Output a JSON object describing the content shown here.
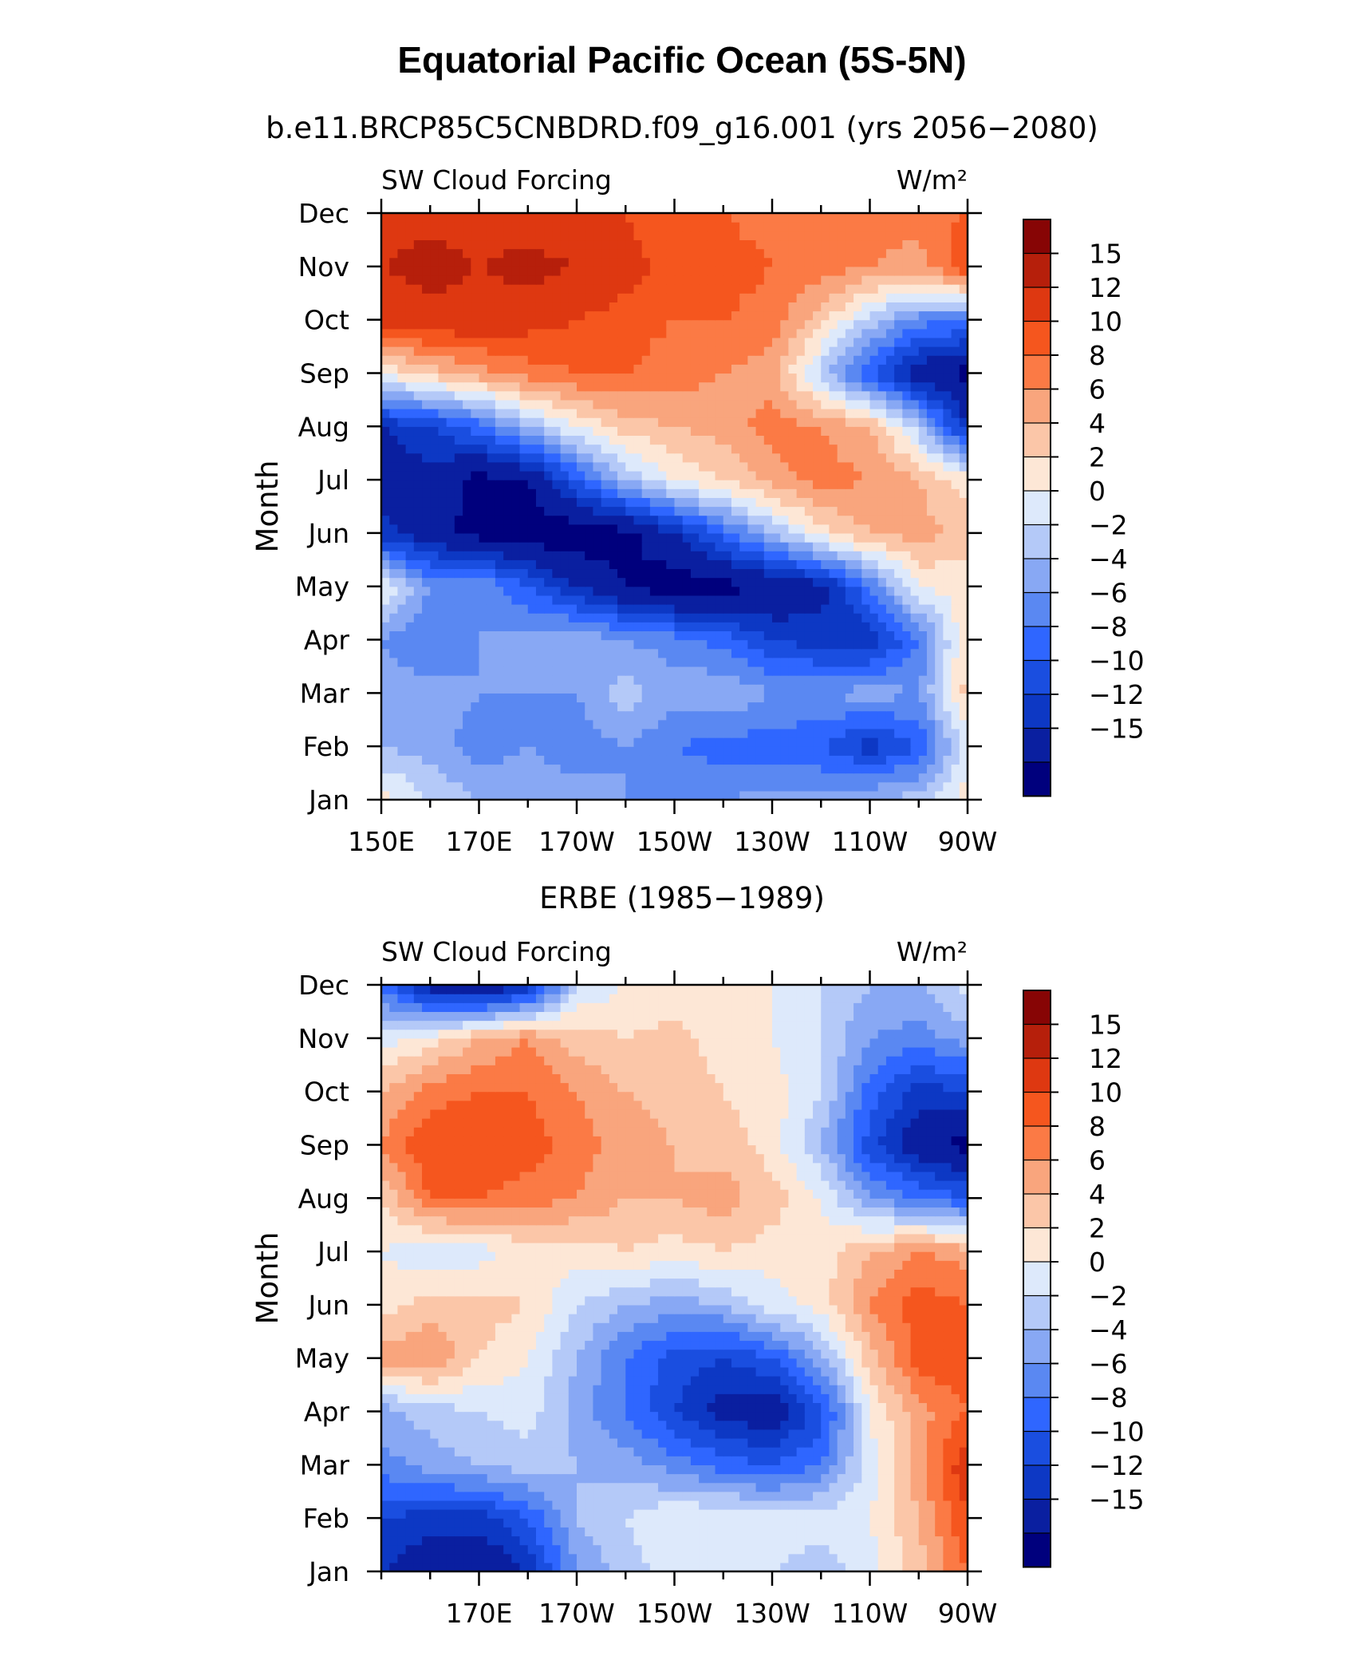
{
  "title": "Equatorial Pacific Ocean (5S-5N)",
  "chart_data": [
    {
      "type": "heatmap",
      "title": "b.e11.BRCP85C5CNBDRD.f09_g16.001 (yrs 2056−2080)",
      "left_label": "SW Cloud Forcing",
      "right_label": "W/m²",
      "ylabel": "Month",
      "xlabel": "",
      "yticks": [
        "Jan",
        "Feb",
        "Mar",
        "Apr",
        "May",
        "Jun",
        "Jul",
        "Aug",
        "Sep",
        "Oct",
        "Nov",
        "Dec"
      ],
      "xtick_labels": [
        "150E",
        "170E",
        "170W",
        "150W",
        "130W",
        "110W",
        "90W"
      ],
      "x_longitudes": [
        150,
        160,
        170,
        180,
        190,
        200,
        210,
        220,
        230,
        240,
        250,
        260,
        270
      ],
      "values": [
        [
          3,
          0,
          -2,
          -3,
          -3,
          -4,
          -4,
          -4,
          -3,
          -3,
          -2,
          -1,
          3
        ],
        [
          -2,
          -3,
          -5,
          -4,
          -5,
          -4,
          -6,
          -7,
          -7,
          -8,
          -11,
          -8,
          1
        ],
        [
          -3,
          -3,
          -4,
          -4,
          -4,
          -1,
          -3,
          -2,
          -4,
          -4,
          -3,
          -4,
          5
        ],
        [
          -4,
          -6,
          -4,
          -3,
          -2,
          -4,
          -5,
          -7,
          -10,
          -11,
          -12,
          -6,
          4
        ],
        [
          2,
          -4,
          -4,
          -8,
          -12,
          -15,
          -17,
          -16,
          -15,
          -13,
          -6,
          2,
          3
        ],
        [
          -11,
          -14,
          -16,
          -17,
          -17,
          -16,
          -12,
          -7,
          -2,
          3,
          6,
          7,
          5
        ],
        [
          -14,
          -13,
          -16,
          -15,
          -8,
          -2,
          2,
          4,
          7,
          9,
          8,
          6,
          3
        ],
        [
          -12,
          -10,
          -7,
          -2,
          2,
          5,
          6,
          7,
          9,
          8,
          6,
          -1,
          -12
        ],
        [
          2,
          5,
          7,
          9,
          10,
          10,
          9,
          8,
          7,
          -1,
          -8,
          -14,
          -16
        ],
        [
          13,
          14,
          14,
          13,
          12,
          11,
          10,
          10,
          9,
          5,
          -1,
          -5,
          -6
        ],
        [
          15,
          16,
          15,
          16,
          15,
          13,
          11,
          11,
          10,
          9,
          8,
          7,
          12
        ],
        [
          14,
          14,
          14,
          13,
          13,
          12,
          10,
          10,
          9,
          9,
          9,
          9,
          10
        ]
      ],
      "colorbar": {
        "labels": [
          "15",
          "12",
          "10",
          "8",
          "6",
          "4",
          "2",
          "0",
          "−2",
          "−4",
          "−6",
          "−8",
          "−10",
          "−12",
          "−15"
        ],
        "levels": [
          -15,
          -12,
          -10,
          -8,
          -6,
          -4,
          -2,
          0,
          2,
          4,
          6,
          8,
          10,
          12,
          15
        ],
        "colors": [
          "#00007d",
          "#0a1fa0",
          "#0d38c4",
          "#1a4ee0",
          "#2f66ff",
          "#5a88f2",
          "#88a8f4",
          "#b4c9f8",
          "#dde9fb",
          "#fde7d6",
          "#fbc6a8",
          "#f9a57d",
          "#fb7a45",
          "#f5561e",
          "#de3811",
          "#b61f0b",
          "#870505"
        ]
      }
    },
    {
      "type": "heatmap",
      "title": "ERBE (1985−1989)",
      "left_label": "SW Cloud Forcing",
      "right_label": "W/m²",
      "ylabel": "Month",
      "xlabel": "",
      "yticks": [
        "Jan",
        "Feb",
        "Mar",
        "Apr",
        "May",
        "Jun",
        "Jul",
        "Aug",
        "Sep",
        "Oct",
        "Nov",
        "Dec"
      ],
      "xtick_labels": [
        "170E",
        "170W",
        "150W",
        "130W",
        "110W",
        "90W"
      ],
      "x_longitudes": [
        150,
        160,
        170,
        180,
        190,
        200,
        210,
        220,
        230,
        240,
        250,
        260,
        270
      ],
      "values": [
        [
          -12,
          -14,
          -15,
          -12,
          -4,
          -1,
          1,
          2,
          0,
          -1,
          1,
          5,
          10
        ],
        [
          -10,
          -11,
          -11,
          -8,
          -2,
          0,
          2,
          2,
          1,
          1,
          2,
          6,
          12
        ],
        [
          -5,
          -3,
          -2,
          -1,
          -2,
          -3,
          -5,
          -7,
          -8,
          -6,
          1,
          7,
          14
        ],
        [
          -3,
          -1,
          0,
          1,
          -3,
          -6,
          -10,
          -13,
          -14,
          -9,
          2,
          7,
          10
        ],
        [
          7,
          8,
          4,
          2,
          -2,
          -6,
          -9,
          -10,
          -8,
          -3,
          5,
          11,
          12
        ],
        [
          3,
          5,
          5,
          4,
          0,
          -2,
          -3,
          -2,
          1,
          3,
          8,
          11,
          10
        ],
        [
          2,
          0,
          1,
          3,
          3,
          4,
          3,
          4,
          3,
          3,
          6,
          8,
          7
        ],
        [
          4,
          10,
          10,
          9,
          8,
          6,
          6,
          7,
          5,
          2,
          -4,
          -6,
          -8
        ],
        [
          8,
          12,
          12,
          11,
          9,
          7,
          6,
          5,
          3,
          -2,
          -9,
          -14,
          -16
        ],
        [
          6,
          9,
          10,
          10,
          8,
          6,
          5,
          4,
          3,
          0,
          -7,
          -11,
          -10
        ],
        [
          1,
          3,
          6,
          8,
          5,
          4,
          5,
          3,
          2,
          0,
          -4,
          -5,
          -3
        ],
        [
          -6,
          -14,
          -15,
          -12,
          0,
          2,
          2,
          2,
          2,
          0,
          -2,
          -2,
          1
        ]
      ],
      "colorbar": {
        "labels": [
          "15",
          "12",
          "10",
          "8",
          "6",
          "4",
          "2",
          "0",
          "−2",
          "−4",
          "−6",
          "−8",
          "−10",
          "−12",
          "−15"
        ],
        "levels": [
          -15,
          -12,
          -10,
          -8,
          -6,
          -4,
          -2,
          0,
          2,
          4,
          6,
          8,
          10,
          12,
          15
        ],
        "colors": [
          "#00007d",
          "#0a1fa0",
          "#0d38c4",
          "#1a4ee0",
          "#2f66ff",
          "#5a88f2",
          "#88a8f4",
          "#b4c9f8",
          "#dde9fb",
          "#fde7d6",
          "#fbc6a8",
          "#f9a57d",
          "#fb7a45",
          "#f5561e",
          "#de3811",
          "#b61f0b",
          "#870505"
        ]
      }
    }
  ]
}
